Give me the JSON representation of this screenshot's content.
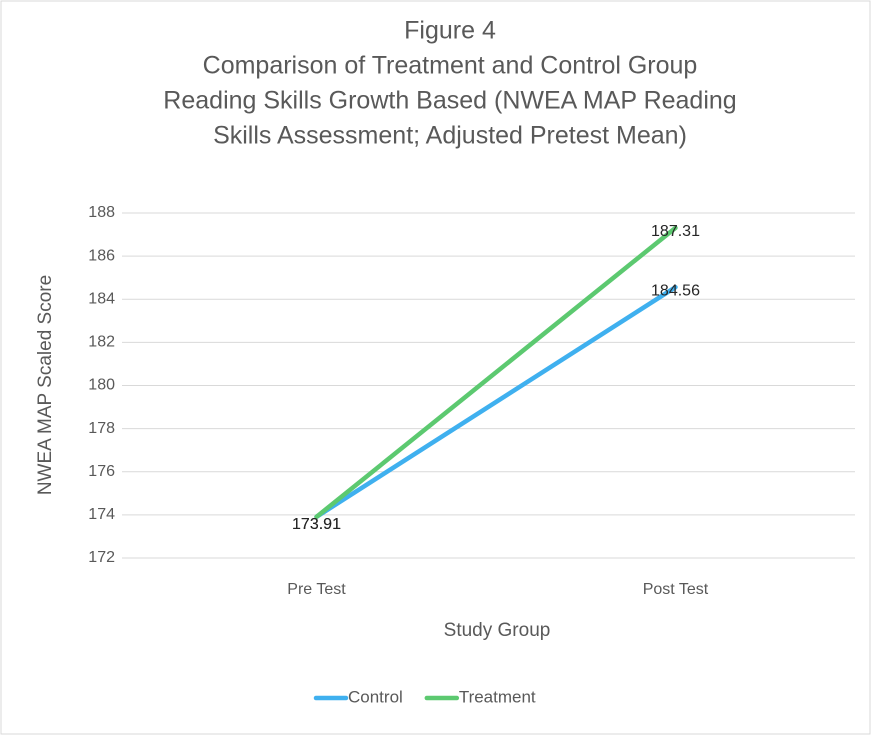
{
  "chart_data": {
    "type": "line",
    "title": [
      "Figure 4",
      "Comparison of Treatment and Control Group",
      "Reading Skills Growth Based (NWEA MAP Reading",
      "Skills Assessment; Adjusted Pretest Mean)"
    ],
    "x_label": "Study Group",
    "y_label": "NWEA MAP Scaled Score",
    "categories": [
      "Pre Test",
      "Post Test"
    ],
    "series": [
      {
        "name": "Control",
        "color": "#3fb0ef",
        "values": [
          173.91,
          184.56
        ]
      },
      {
        "name": "Treatment",
        "color": "#5cc970",
        "values": [
          173.91,
          187.31
        ]
      }
    ],
    "ylim": [
      172,
      188
    ],
    "yticks": [
      172,
      174,
      176,
      178,
      180,
      182,
      184,
      186,
      188
    ],
    "grid": true,
    "legend": "bottom"
  }
}
